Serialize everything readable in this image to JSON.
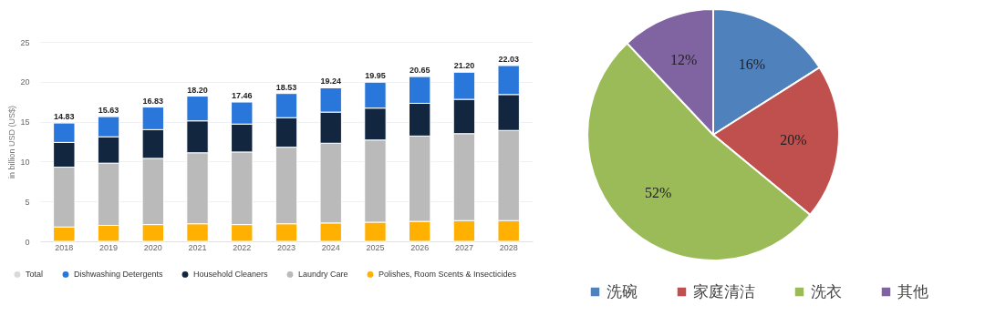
{
  "chart_data": [
    {
      "type": "bar",
      "stacked": true,
      "ylabel": "in billion USD (US$)",
      "categories": [
        "2018",
        "2019",
        "2020",
        "2021",
        "2022",
        "2023",
        "2024",
        "2025",
        "2026",
        "2027",
        "2028"
      ],
      "series": [
        {
          "name": "Polishes, Room Scents & Insecticides",
          "color": "#ffb000",
          "values": [
            1.8,
            2.0,
            2.1,
            2.2,
            2.1,
            2.2,
            2.3,
            2.4,
            2.5,
            2.6,
            2.6
          ]
        },
        {
          "name": "Laundry Care",
          "color": "#bababa",
          "values": [
            7.5,
            7.8,
            8.3,
            8.9,
            9.1,
            9.6,
            10.0,
            10.3,
            10.7,
            10.9,
            11.3
          ]
        },
        {
          "name": "Household Cleaners",
          "color": "#12263f",
          "values": [
            3.1,
            3.3,
            3.6,
            4.0,
            3.5,
            3.7,
            3.9,
            4.0,
            4.1,
            4.3,
            4.5
          ]
        },
        {
          "name": "Dishwashing Detergents",
          "color": "#2a77dc",
          "values": [
            2.43,
            2.53,
            2.83,
            3.1,
            2.76,
            3.03,
            3.04,
            3.25,
            3.35,
            3.4,
            3.63
          ]
        },
        {
          "name": "Total",
          "color": "#d9d9d9",
          "values": [
            null,
            null,
            null,
            null,
            null,
            null,
            null,
            null,
            null,
            null,
            null
          ]
        }
      ],
      "totals": [
        "14.83",
        "15.63",
        "16.83",
        "18.20",
        "17.46",
        "18.53",
        "19.24",
        "19.95",
        "20.65",
        "21.20",
        "22.03"
      ],
      "ylim": [
        0,
        25
      ],
      "yticks": [
        0,
        5,
        10,
        15,
        20,
        25
      ],
      "grid": "y",
      "legend": "bottom left"
    },
    {
      "type": "pie",
      "categories": [
        "洗碗",
        "家庭清洁",
        "洗衣",
        "其他"
      ],
      "values": [
        16,
        20,
        52,
        12
      ],
      "colors": [
        "#4f81bd",
        "#c0504d",
        "#9bbb59",
        "#8064a2"
      ],
      "value_labels": [
        "16%",
        "20%",
        "52%",
        "12%"
      ],
      "legend": "bottom"
    }
  ]
}
